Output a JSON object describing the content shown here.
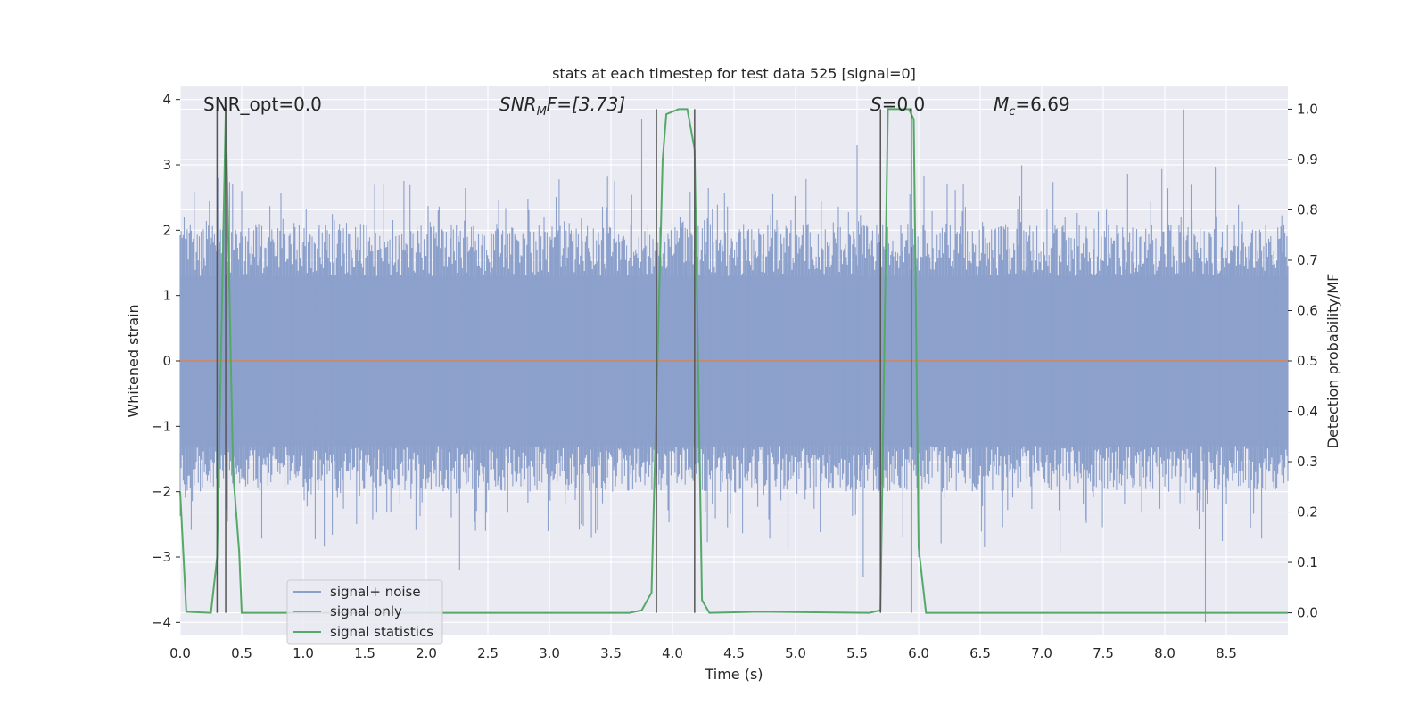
{
  "chart_data": {
    "type": "line",
    "title": "stats at each timestep for test data 525 [signal=0]",
    "xlabel": "Time (s)",
    "ylabel_left": "Whitened strain",
    "ylabel_right": "Detection probability/MF",
    "xlim": [
      0.0,
      9.0
    ],
    "ylim_left": [
      -4.2,
      4.2
    ],
    "ylim_right": [
      -0.045,
      1.045
    ],
    "x_ticks": [
      "0.0",
      "0.5",
      "1.0",
      "1.5",
      "2.0",
      "2.5",
      "3.0",
      "3.5",
      "4.0",
      "4.5",
      "5.0",
      "5.5",
      "6.0",
      "6.5",
      "7.0",
      "7.5",
      "8.0",
      "8.5"
    ],
    "y_ticks_left": [
      "4",
      "3",
      "2",
      "1",
      "0",
      "−1",
      "−2",
      "−3",
      "−4"
    ],
    "y_ticks_right": [
      "1.0",
      "0.9",
      "0.8",
      "0.7",
      "0.6",
      "0.5",
      "0.4",
      "0.3",
      "0.2",
      "0.1",
      "0.0"
    ],
    "grid": true,
    "annotations": {
      "snr_opt": "SNR_opt=0.0",
      "snr_mf_base": "SNR",
      "snr_mf_sub": "M",
      "snr_mf_rest": "F=[3.73]",
      "s_italic": "S",
      "s_rest": "=0.0",
      "mc_base": "M",
      "mc_sub": "c",
      "mc_rest": "=6.69"
    },
    "legend": {
      "position": "lower-left",
      "entries": [
        "signal+ noise",
        "signal only",
        "signal statistics"
      ]
    },
    "series": [
      {
        "name": "signal+ noise",
        "color": "#8ca0cc",
        "description_amplitude_range": [
          -4.0,
          3.85
        ],
        "peaks": [
          [
            0.31,
            2.8
          ],
          [
            0.5,
            2.6
          ],
          [
            3.75,
            3.7
          ],
          [
            5.5,
            3.3
          ],
          [
            8.15,
            3.85
          ],
          [
            8.33,
            -4.0
          ],
          [
            5.55,
            -3.3
          ],
          [
            2.27,
            -3.2
          ],
          [
            6.0,
            -3.0
          ]
        ]
      },
      {
        "name": "signal only",
        "color": "#dd8452",
        "x": [
          0.0,
          9.0
        ],
        "y": [
          0.0,
          0.0
        ]
      },
      {
        "name": "signal statistics",
        "color": "#55a868",
        "x": [
          0.0,
          0.05,
          0.25,
          0.3,
          0.37,
          0.43,
          0.48,
          0.5,
          3.65,
          3.75,
          3.83,
          3.92,
          3.95,
          4.05,
          4.12,
          4.18,
          4.24,
          4.3,
          4.7,
          5.6,
          5.69,
          5.75,
          5.92,
          5.96,
          6.0,
          6.06,
          9.0
        ],
        "y": [
          0.24,
          0.002,
          0.0,
          0.11,
          1.0,
          0.28,
          0.12,
          0.0,
          0.0,
          0.005,
          0.04,
          0.9,
          0.99,
          1.0,
          1.0,
          0.92,
          0.025,
          0.0,
          0.002,
          0.0,
          0.005,
          1.0,
          1.0,
          0.98,
          0.13,
          0.0,
          0.0
        ]
      }
    ],
    "vertical_markers": [
      0.3,
      0.37,
      3.87,
      4.18,
      5.69,
      5.94
    ],
    "marker_color": "#555555"
  }
}
